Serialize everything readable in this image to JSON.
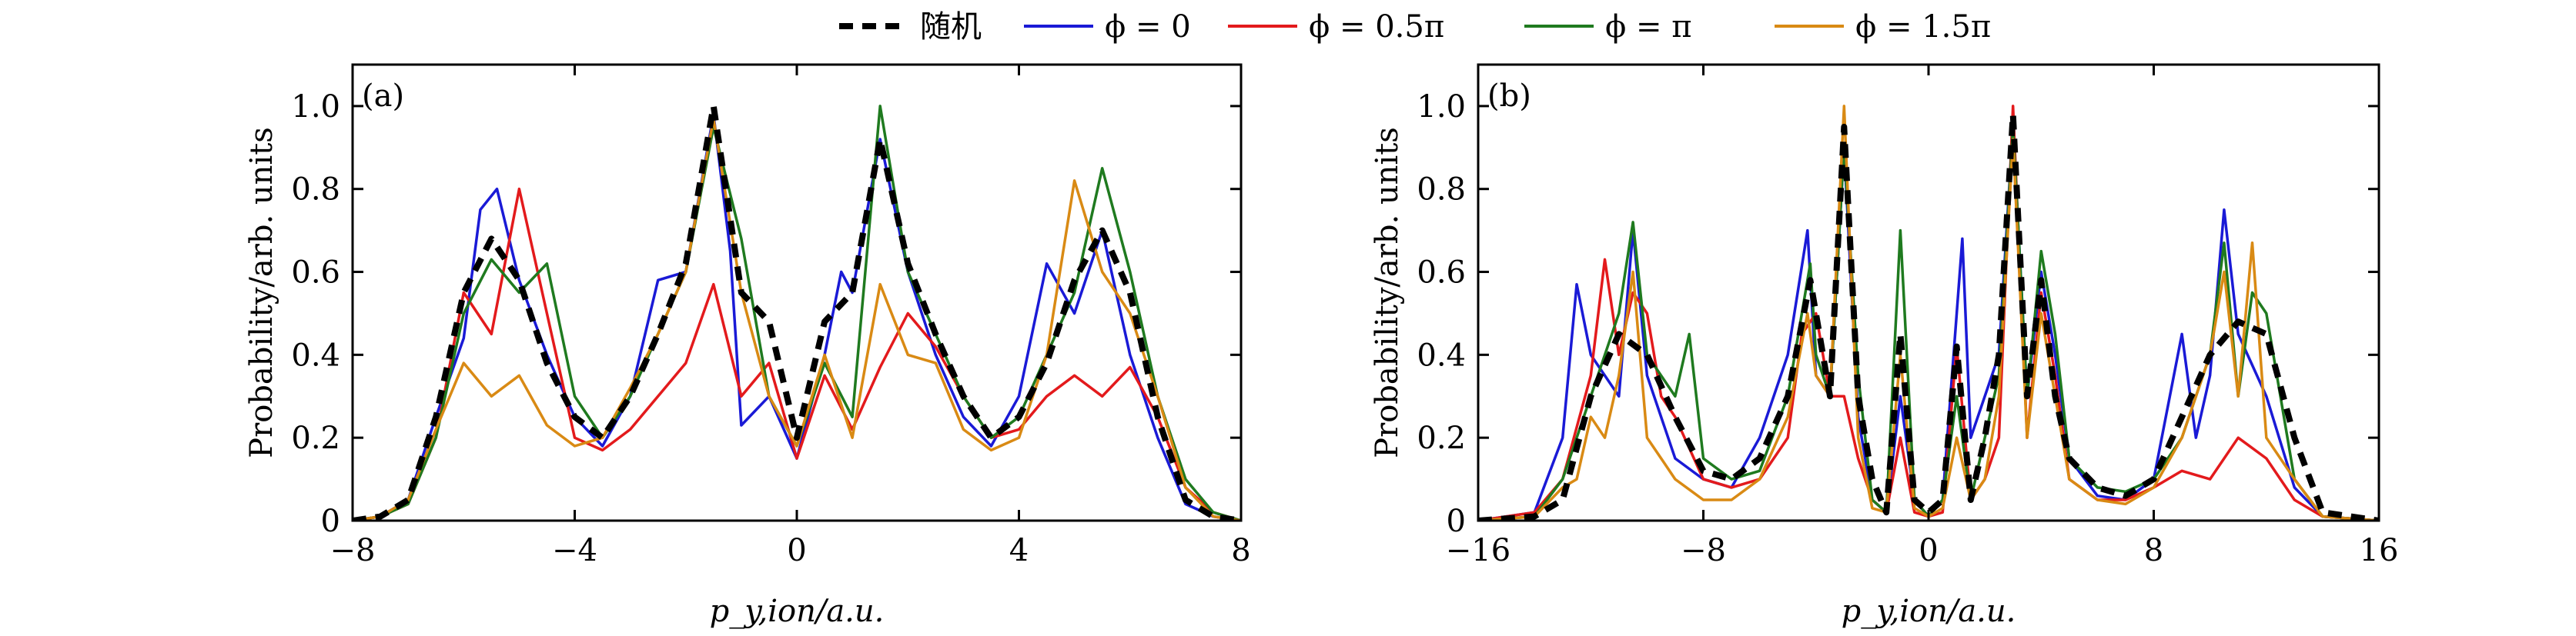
{
  "chart_data": {
    "legend": [
      {
        "label": "随机",
        "color": "#000000",
        "dash": "dashed"
      },
      {
        "label": "ϕ = 0",
        "color": "#1a1ad6"
      },
      {
        "label": "ϕ = 0.5π",
        "color": "#e31a1c"
      },
      {
        "label": "ϕ = π",
        "color": "#1f7a1f"
      },
      {
        "label": "ϕ = 1.5π",
        "color": "#d98a14"
      }
    ],
    "panels": [
      {
        "type": "line",
        "panel_label": "(a)",
        "xlabel": "p_y,ion/a.u.",
        "ylabel": "Probability/arb. units",
        "xlim": [
          -8,
          8
        ],
        "ylim": [
          0,
          1.1
        ],
        "xticks": [
          -8,
          -4,
          0,
          4,
          8
        ],
        "xtick_labels": [
          "−8",
          "−4",
          "0",
          "4",
          "8"
        ],
        "yticks": [
          0,
          0.2,
          0.4,
          0.6,
          0.8,
          1.0
        ],
        "ytick_labels": [
          "0",
          "0.2",
          "0.4",
          "0.6",
          "0.8",
          "1.0"
        ],
        "series": [
          {
            "name": "随机",
            "x": [
              -8,
              -7.5,
              -7,
              -6.5,
              -6,
              -5.5,
              -5,
              -4.5,
              -4,
              -3.5,
              -3,
              -2.5,
              -2,
              -1.5,
              -1,
              -0.5,
              0,
              0.5,
              1,
              1.5,
              2,
              2.5,
              3,
              3.5,
              4,
              4.5,
              5,
              5.5,
              6,
              6.5,
              7,
              7.5,
              8
            ],
            "y": [
              0,
              0.01,
              0.05,
              0.25,
              0.55,
              0.68,
              0.58,
              0.38,
              0.25,
              0.2,
              0.3,
              0.45,
              0.62,
              1.0,
              0.55,
              0.48,
              0.2,
              0.48,
              0.55,
              0.92,
              0.62,
              0.45,
              0.3,
              0.2,
              0.25,
              0.38,
              0.58,
              0.7,
              0.55,
              0.25,
              0.05,
              0.01,
              0
            ]
          },
          {
            "name": "ϕ = 0",
            "x": [
              -8,
              -7.5,
              -7,
              -6.5,
              -6,
              -5.7,
              -5.4,
              -5,
              -4.5,
              -4,
              -3.5,
              -3,
              -2.5,
              -2,
              -1.5,
              -1.2,
              -1,
              -0.5,
              0,
              0.5,
              0.8,
              1,
              1.5,
              2,
              2.5,
              3,
              3.5,
              4,
              4.5,
              5,
              5.5,
              6,
              6.5,
              7,
              7.5,
              8
            ],
            "y": [
              0,
              0.01,
              0.05,
              0.25,
              0.44,
              0.75,
              0.8,
              0.58,
              0.4,
              0.25,
              0.18,
              0.3,
              0.58,
              0.6,
              0.98,
              0.65,
              0.23,
              0.3,
              0.15,
              0.4,
              0.6,
              0.55,
              0.92,
              0.6,
              0.4,
              0.25,
              0.18,
              0.3,
              0.62,
              0.5,
              0.7,
              0.4,
              0.2,
              0.04,
              0.01,
              0
            ]
          },
          {
            "name": "ϕ = 0.5π",
            "x": [
              -8,
              -7.5,
              -7,
              -6.5,
              -6,
              -5.5,
              -5,
              -4.5,
              -4,
              -3.5,
              -3,
              -2.5,
              -2,
              -1.5,
              -1,
              -0.5,
              0,
              0.5,
              1,
              1.5,
              2,
              2.5,
              3,
              3.5,
              4,
              4.5,
              5,
              5.5,
              6,
              6.5,
              7,
              7.5,
              8
            ],
            "y": [
              0,
              0.01,
              0.04,
              0.2,
              0.55,
              0.45,
              0.8,
              0.5,
              0.2,
              0.17,
              0.22,
              0.3,
              0.38,
              0.57,
              0.3,
              0.38,
              0.15,
              0.35,
              0.22,
              0.37,
              0.5,
              0.42,
              0.3,
              0.2,
              0.22,
              0.3,
              0.35,
              0.3,
              0.37,
              0.25,
              0.08,
              0.02,
              0
            ]
          },
          {
            "name": "ϕ = π",
            "x": [
              -8,
              -7.5,
              -7,
              -6.5,
              -6,
              -5.5,
              -5,
              -4.5,
              -4,
              -3.5,
              -3,
              -2.5,
              -2,
              -1.5,
              -1,
              -0.5,
              0,
              0.5,
              1,
              1.5,
              2,
              2.5,
              3,
              3.5,
              4,
              4.5,
              5,
              5.5,
              6,
              6.5,
              7,
              7.5,
              8
            ],
            "y": [
              0,
              0.01,
              0.04,
              0.2,
              0.5,
              0.63,
              0.55,
              0.62,
              0.3,
              0.2,
              0.3,
              0.45,
              0.6,
              0.95,
              0.68,
              0.3,
              0.18,
              0.38,
              0.25,
              1.0,
              0.6,
              0.45,
              0.3,
              0.2,
              0.25,
              0.4,
              0.55,
              0.85,
              0.6,
              0.3,
              0.1,
              0.02,
              0
            ]
          },
          {
            "name": "ϕ = 1.5π",
            "x": [
              -8,
              -7.5,
              -7,
              -6.5,
              -6,
              -5.5,
              -5,
              -4.5,
              -4,
              -3.5,
              -3,
              -2.5,
              -2,
              -1.5,
              -1,
              -0.5,
              0,
              0.5,
              1,
              1.5,
              2,
              2.5,
              3,
              3.5,
              4,
              4.5,
              5,
              5.5,
              6,
              6.5,
              7,
              7.5,
              8
            ],
            "y": [
              0,
              0.01,
              0.05,
              0.22,
              0.38,
              0.3,
              0.35,
              0.23,
              0.18,
              0.2,
              0.32,
              0.45,
              0.6,
              0.97,
              0.55,
              0.3,
              0.18,
              0.4,
              0.2,
              0.57,
              0.4,
              0.38,
              0.22,
              0.17,
              0.2,
              0.4,
              0.82,
              0.6,
              0.5,
              0.3,
              0.08,
              0.01,
              0
            ]
          }
        ]
      },
      {
        "type": "line",
        "panel_label": "(b)",
        "xlabel": "p_y,ion/a.u.",
        "ylabel": "Probability/arb. units",
        "xlim": [
          -16,
          16
        ],
        "ylim": [
          0,
          1.1
        ],
        "xticks": [
          -16,
          -8,
          0,
          8,
          16
        ],
        "xtick_labels": [
          "−16",
          "−8",
          "0",
          "8",
          "16"
        ],
        "yticks": [
          0,
          0.2,
          0.4,
          0.6,
          0.8,
          1.0
        ],
        "ytick_labels": [
          "0",
          "0.2",
          "0.4",
          "0.6",
          "0.8",
          "1.0"
        ],
        "series": [
          {
            "name": "随机",
            "x": [
              -16,
              -14,
              -13,
              -12,
              -11,
              -10,
              -9,
              -8,
              -7,
              -6,
              -5,
              -4.2,
              -3.5,
              -3,
              -2.5,
              -2,
              -1.5,
              -1,
              -0.5,
              0,
              0.5,
              1,
              1.5,
              2,
              2.5,
              3,
              3.5,
              4,
              4.5,
              5,
              6,
              7,
              8,
              9,
              10,
              11,
              12,
              13,
              14,
              16
            ],
            "y": [
              0,
              0.01,
              0.05,
              0.3,
              0.45,
              0.4,
              0.25,
              0.12,
              0.1,
              0.15,
              0.3,
              0.58,
              0.3,
              0.95,
              0.3,
              0.1,
              0.02,
              0.45,
              0.05,
              0.02,
              0.05,
              0.42,
              0.05,
              0.2,
              0.4,
              0.98,
              0.3,
              0.58,
              0.3,
              0.15,
              0.08,
              0.06,
              0.1,
              0.25,
              0.4,
              0.48,
              0.45,
              0.2,
              0.02,
              0
            ]
          },
          {
            "name": "ϕ = 0",
            "x": [
              -16,
              -14,
              -13,
              -12.5,
              -12,
              -11,
              -10.5,
              -10,
              -9,
              -8,
              -7,
              -6,
              -5,
              -4.3,
              -4,
              -3.5,
              -3,
              -2.5,
              -2,
              -1.5,
              -1,
              -0.5,
              0,
              0.5,
              1,
              1.2,
              1.5,
              2,
              2.5,
              3,
              3.5,
              4,
              4.5,
              5,
              6,
              7,
              8,
              9,
              9.5,
              10,
              10.5,
              11,
              12,
              13,
              14,
              16
            ],
            "y": [
              0,
              0.02,
              0.2,
              0.57,
              0.4,
              0.3,
              0.7,
              0.35,
              0.15,
              0.1,
              0.08,
              0.2,
              0.4,
              0.7,
              0.35,
              0.3,
              0.9,
              0.25,
              0.05,
              0.02,
              0.3,
              0.05,
              0.01,
              0.05,
              0.5,
              0.68,
              0.2,
              0.3,
              0.4,
              0.95,
              0.3,
              0.6,
              0.4,
              0.15,
              0.06,
              0.05,
              0.1,
              0.45,
              0.2,
              0.35,
              0.75,
              0.45,
              0.3,
              0.08,
              0.01,
              0
            ]
          },
          {
            "name": "ϕ = 0.5π",
            "x": [
              -16,
              -14,
              -13,
              -12,
              -11.5,
              -11,
              -10.5,
              -10,
              -9.5,
              -9,
              -8,
              -7,
              -6,
              -5,
              -4.5,
              -4,
              -3.5,
              -3,
              -2.5,
              -2,
              -1.5,
              -1,
              -0.5,
              0,
              0.5,
              1,
              1.5,
              2,
              2.5,
              3,
              3.5,
              4,
              4.5,
              5,
              6,
              7,
              8,
              9,
              10,
              11,
              12,
              13,
              14,
              16
            ],
            "y": [
              0,
              0.02,
              0.1,
              0.35,
              0.63,
              0.4,
              0.55,
              0.5,
              0.3,
              0.25,
              0.1,
              0.08,
              0.1,
              0.2,
              0.45,
              0.5,
              0.3,
              0.3,
              0.15,
              0.05,
              0.02,
              0.2,
              0.02,
              0.01,
              0.02,
              0.42,
              0.05,
              0.1,
              0.2,
              1.0,
              0.2,
              0.55,
              0.35,
              0.1,
              0.05,
              0.05,
              0.08,
              0.12,
              0.1,
              0.2,
              0.15,
              0.05,
              0.01,
              0
            ]
          },
          {
            "name": "ϕ = π",
            "x": [
              -16,
              -14,
              -13,
              -12,
              -11,
              -10.5,
              -10,
              -9,
              -8.5,
              -8,
              -7,
              -6,
              -5,
              -4.2,
              -4,
              -3.5,
              -3,
              -2.5,
              -2,
              -1.5,
              -1,
              -0.5,
              0,
              0.5,
              1,
              1.5,
              2,
              2.5,
              3,
              3.5,
              4,
              4.5,
              5,
              6,
              7,
              8,
              9,
              10,
              10.5,
              11,
              11.5,
              12,
              13,
              14,
              16
            ],
            "y": [
              0,
              0.01,
              0.1,
              0.3,
              0.5,
              0.72,
              0.4,
              0.3,
              0.45,
              0.15,
              0.1,
              0.12,
              0.3,
              0.62,
              0.4,
              0.3,
              0.9,
              0.35,
              0.05,
              0.02,
              0.7,
              0.05,
              0.01,
              0.05,
              0.3,
              0.05,
              0.2,
              0.35,
              0.95,
              0.3,
              0.65,
              0.45,
              0.15,
              0.08,
              0.07,
              0.1,
              0.2,
              0.4,
              0.67,
              0.3,
              0.55,
              0.5,
              0.1,
              0.01,
              0
            ]
          },
          {
            "name": "ϕ = 1.5π",
            "x": [
              -16,
              -14,
              -13,
              -12.5,
              -12,
              -11.5,
              -11,
              -10.5,
              -10,
              -9.5,
              -9,
              -8,
              -7,
              -6,
              -5,
              -4.3,
              -4,
              -3.5,
              -3,
              -2.5,
              -2,
              -1.5,
              -1,
              -0.5,
              0,
              0.5,
              1,
              1.5,
              2,
              2.5,
              3,
              3.5,
              4,
              4.5,
              5,
              6,
              7,
              8,
              9,
              10,
              10.5,
              11,
              11.5,
              12,
              13,
              14,
              16
            ],
            "y": [
              0,
              0.01,
              0.08,
              0.1,
              0.25,
              0.2,
              0.35,
              0.6,
              0.2,
              0.15,
              0.1,
              0.05,
              0.05,
              0.1,
              0.25,
              0.5,
              0.35,
              0.3,
              1.0,
              0.2,
              0.03,
              0.02,
              0.4,
              0.03,
              0.01,
              0.03,
              0.2,
              0.05,
              0.1,
              0.3,
              0.92,
              0.2,
              0.5,
              0.3,
              0.1,
              0.05,
              0.04,
              0.08,
              0.2,
              0.4,
              0.6,
              0.3,
              0.67,
              0.2,
              0.1,
              0.01,
              0
            ]
          }
        ]
      }
    ]
  }
}
